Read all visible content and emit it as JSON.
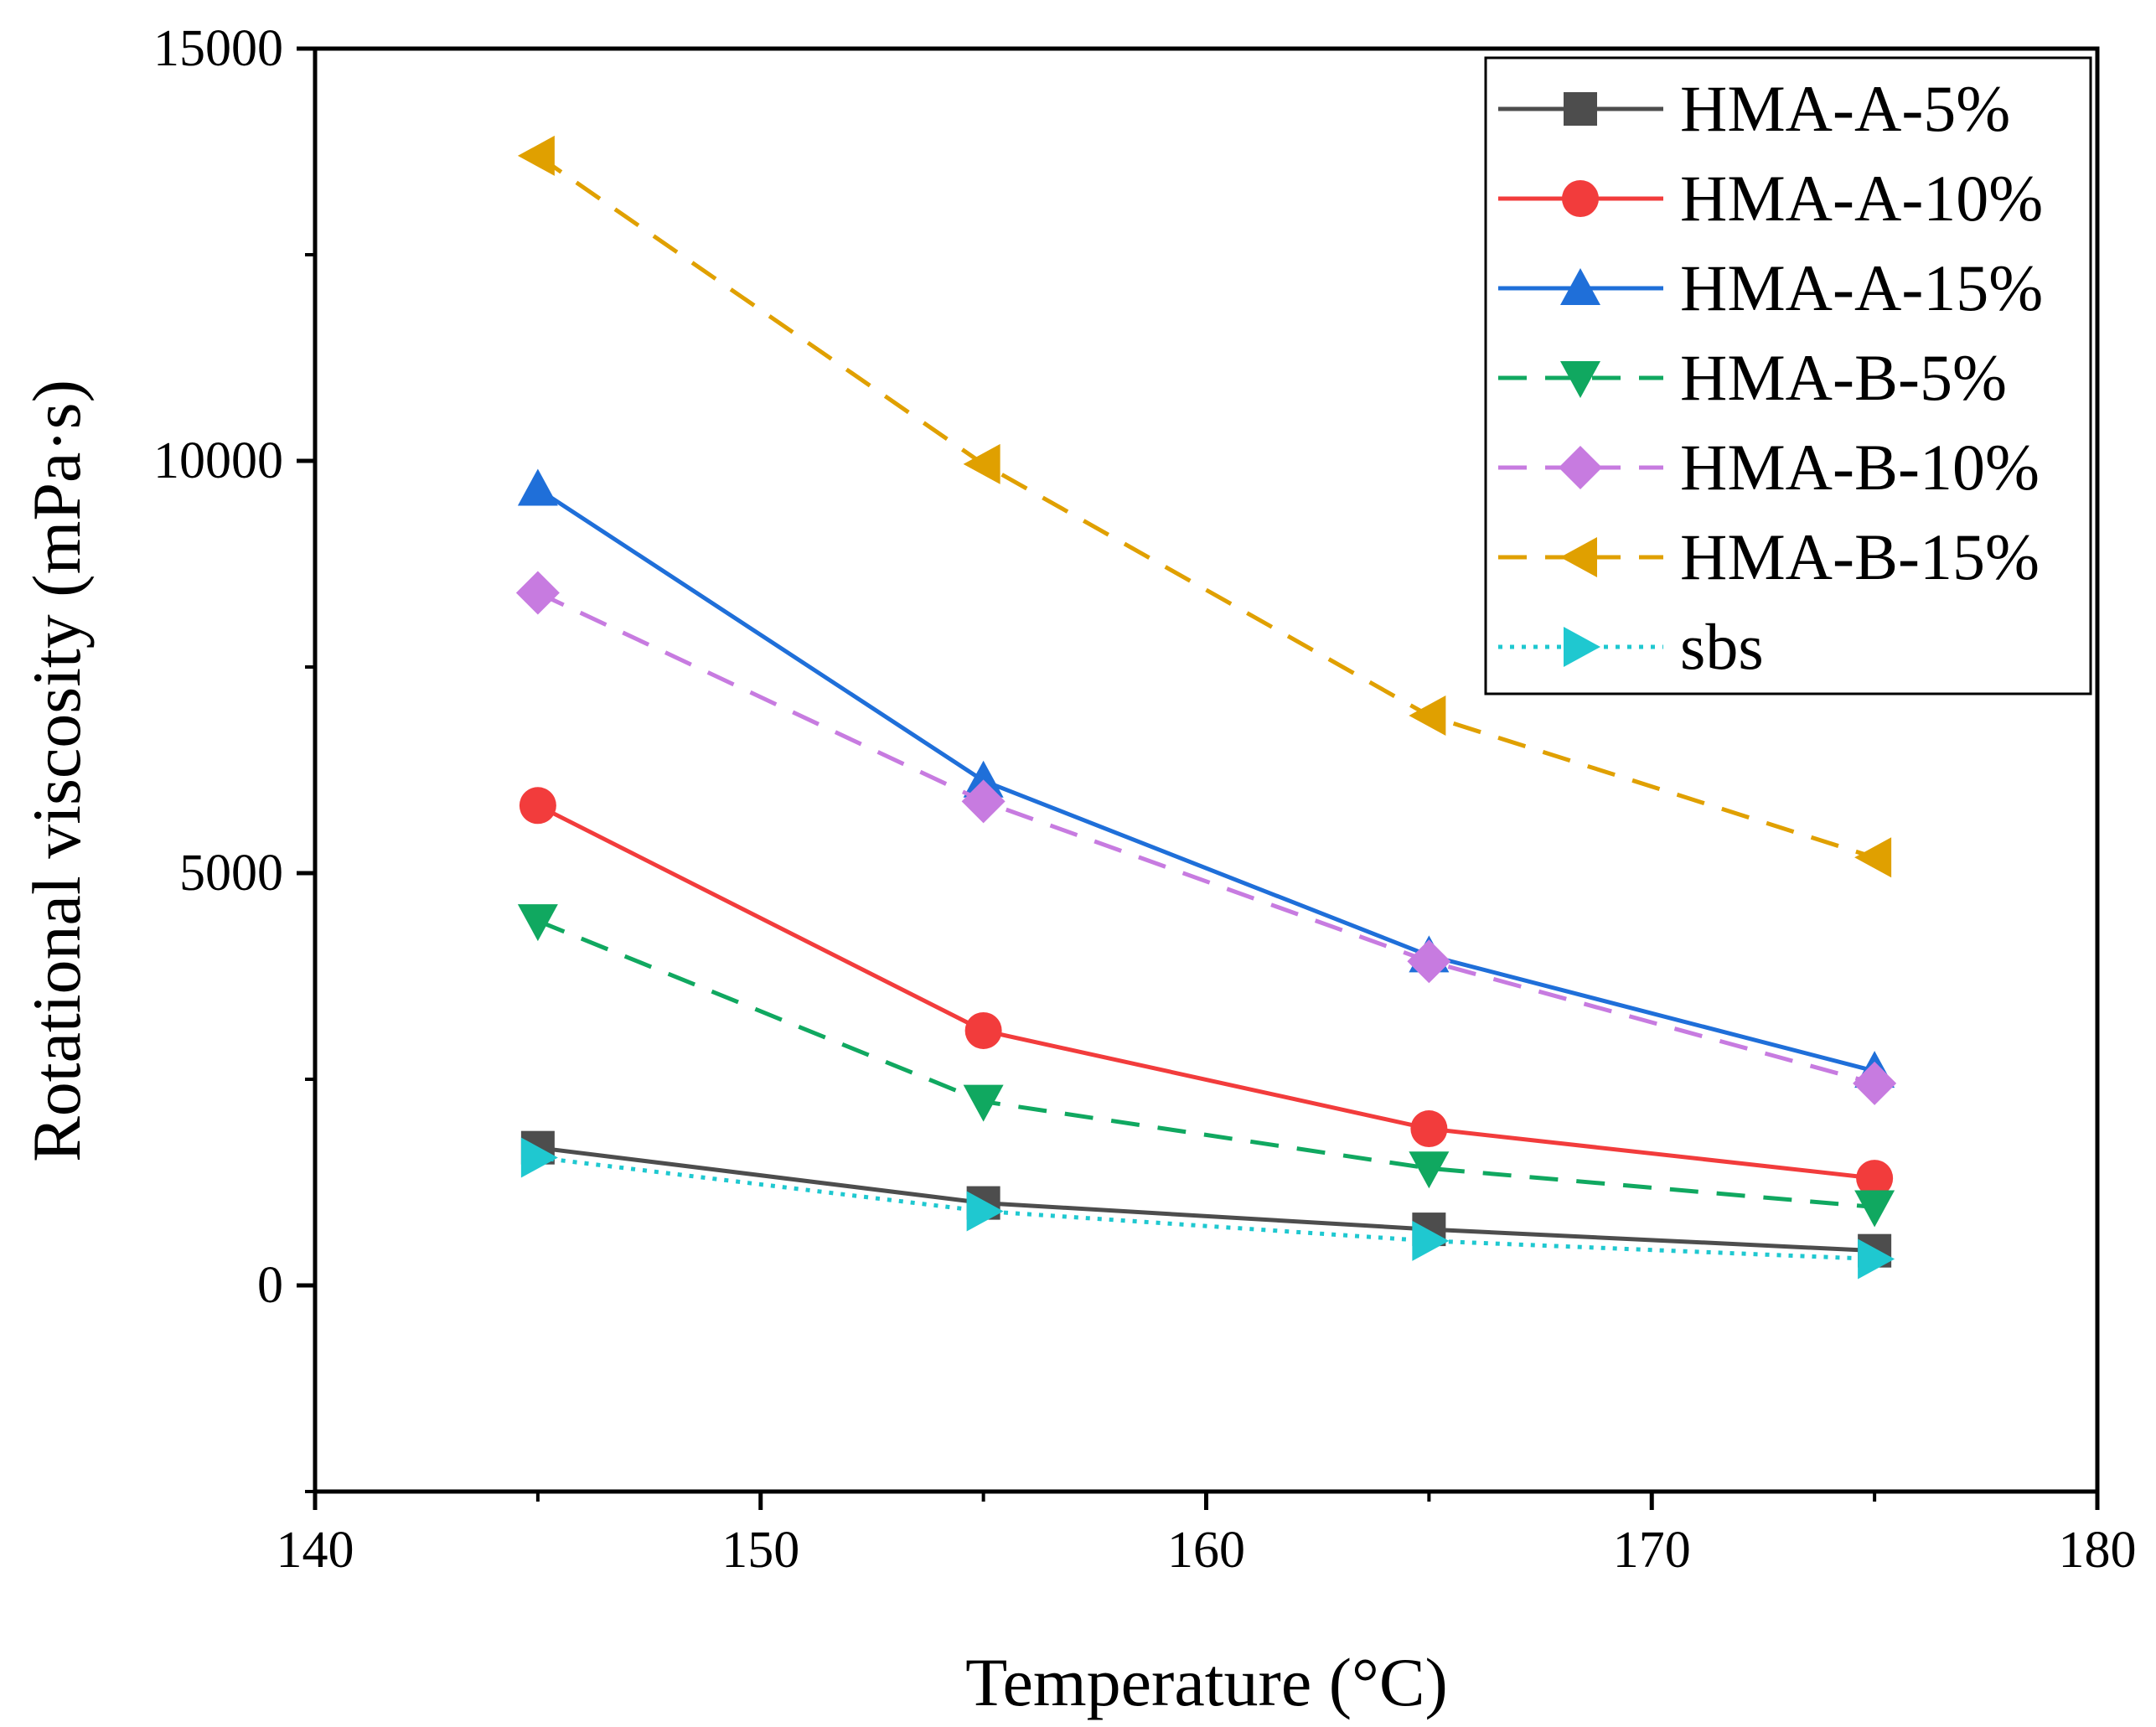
{
  "chart_data": {
    "type": "line",
    "title": "",
    "xlabel": "Temperature (°C)",
    "ylabel": "Rotational viscosity (mPa·s)",
    "xlim": [
      140,
      180
    ],
    "ylim": [
      -2500,
      15000
    ],
    "xticks": [
      140,
      150,
      160,
      170,
      180
    ],
    "yticks": [
      0,
      5000,
      10000,
      15000
    ],
    "xtick_labels": [
      "140",
      "150",
      "160",
      "170",
      "180"
    ],
    "ytick_labels": [
      "0",
      "5000",
      "10000",
      "15000"
    ],
    "grid": false,
    "legend_position": "top-right",
    "x": [
      145,
      155,
      165,
      175
    ],
    "series": [
      {
        "name": "HMA-A-5%",
        "values": [
          1670,
          1000,
          680,
          420
        ],
        "color": "#4d4d4d",
        "marker": "square",
        "dash": "solid"
      },
      {
        "name": "HMA-A-10%",
        "values": [
          5820,
          3090,
          1900,
          1300
        ],
        "color": "#f23c3c",
        "marker": "circle",
        "dash": "solid"
      },
      {
        "name": "HMA-A-15%",
        "values": [
          9660,
          6120,
          4000,
          2600
        ],
        "color": "#1f6fd9",
        "marker": "triangle-up",
        "dash": "solid"
      },
      {
        "name": "HMA-B-5%",
        "values": [
          4420,
          2230,
          1420,
          950
        ],
        "color": "#10a860",
        "marker": "triangle-down",
        "dash": "dash"
      },
      {
        "name": "HMA-B-10%",
        "values": [
          8400,
          5870,
          3930,
          2450
        ],
        "color": "#c77be0",
        "marker": "diamond",
        "dash": "dash"
      },
      {
        "name": "HMA-B-15%",
        "values": [
          13700,
          9960,
          6910,
          5190
        ],
        "color": "#e0a000",
        "marker": "triangle-left",
        "dash": "dash"
      },
      {
        "name": "sbs",
        "values": [
          1550,
          900,
          540,
          320
        ],
        "color": "#1fc8d0",
        "marker": "triangle-right",
        "dash": "dot"
      }
    ]
  }
}
